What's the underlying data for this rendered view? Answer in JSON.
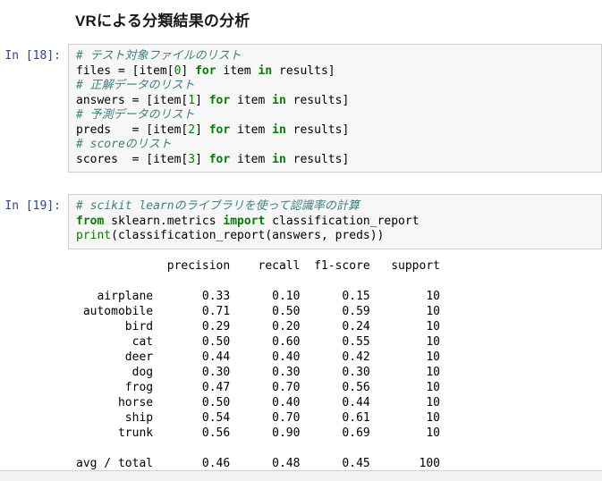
{
  "title": "VRによる分類結果の分析",
  "colors": {
    "prompt": "#303F9F",
    "cell_background": "#f7f7f7",
    "cell_border": "#cfcfcf",
    "comment": "#408080",
    "keyword": "#008000",
    "number": "#008000"
  },
  "cells": [
    {
      "prompt": "In [18]:",
      "lines": [
        [
          {
            "c": "com",
            "t": "# テスト対象ファイルのリスト"
          }
        ],
        [
          {
            "c": "",
            "t": "files = [item["
          },
          {
            "c": "num",
            "t": "0"
          },
          {
            "c": "",
            "t": "] "
          },
          {
            "c": "kw",
            "t": "for"
          },
          {
            "c": "",
            "t": " item "
          },
          {
            "c": "kw",
            "t": "in"
          },
          {
            "c": "",
            "t": " results]"
          }
        ],
        [
          {
            "c": "com",
            "t": "# 正解データのリスト"
          }
        ],
        [
          {
            "c": "",
            "t": "answers = [item["
          },
          {
            "c": "num",
            "t": "1"
          },
          {
            "c": "",
            "t": "] "
          },
          {
            "c": "kw",
            "t": "for"
          },
          {
            "c": "",
            "t": " item "
          },
          {
            "c": "kw",
            "t": "in"
          },
          {
            "c": "",
            "t": " results]"
          }
        ],
        [
          {
            "c": "com",
            "t": "# 予測データのリスト"
          }
        ],
        [
          {
            "c": "",
            "t": "preds   = [item["
          },
          {
            "c": "num",
            "t": "2"
          },
          {
            "c": "",
            "t": "] "
          },
          {
            "c": "kw",
            "t": "for"
          },
          {
            "c": "",
            "t": " item "
          },
          {
            "c": "kw",
            "t": "in"
          },
          {
            "c": "",
            "t": " results]"
          }
        ],
        [
          {
            "c": "com",
            "t": "# scoreのリスト"
          }
        ],
        [
          {
            "c": "",
            "t": "scores  = [item["
          },
          {
            "c": "num",
            "t": "3"
          },
          {
            "c": "",
            "t": "] "
          },
          {
            "c": "kw",
            "t": "for"
          },
          {
            "c": "",
            "t": " item "
          },
          {
            "c": "kw",
            "t": "in"
          },
          {
            "c": "",
            "t": " results]"
          }
        ]
      ]
    },
    {
      "prompt": "In [19]:",
      "lines": [
        [
          {
            "c": "com",
            "t": "# scikit learnのライブラリを使って認識率の計算"
          }
        ],
        [
          {
            "c": "kw",
            "t": "from"
          },
          {
            "c": "",
            "t": " sklearn.metrics "
          },
          {
            "c": "kw",
            "t": "import"
          },
          {
            "c": "",
            "t": " classification_report"
          }
        ],
        [
          {
            "c": "blt",
            "t": "print"
          },
          {
            "c": "",
            "t": "(classification_report(answers, preds))"
          }
        ]
      ]
    }
  ],
  "output": {
    "lines": [
      "             precision    recall  f1-score   support",
      "",
      "   airplane       0.33      0.10      0.15        10",
      " automobile       0.71      0.50      0.59        10",
      "       bird       0.29      0.20      0.24        10",
      "        cat       0.50      0.60      0.55        10",
      "       deer       0.44      0.40      0.42        10",
      "        dog       0.30      0.30      0.30        10",
      "       frog       0.47      0.70      0.56        10",
      "      horse       0.50      0.40      0.44        10",
      "       ship       0.54      0.70      0.61        10",
      "      trunk       0.56      0.90      0.69        10",
      "",
      "avg / total       0.46      0.48      0.45       100"
    ],
    "table": {
      "headers": [
        "precision",
        "recall",
        "f1-score",
        "support"
      ],
      "rows": [
        {
          "label": "airplane",
          "precision": 0.33,
          "recall": 0.1,
          "f1_score": 0.15,
          "support": 10
        },
        {
          "label": "automobile",
          "precision": 0.71,
          "recall": 0.5,
          "f1_score": 0.59,
          "support": 10
        },
        {
          "label": "bird",
          "precision": 0.29,
          "recall": 0.2,
          "f1_score": 0.24,
          "support": 10
        },
        {
          "label": "cat",
          "precision": 0.5,
          "recall": 0.6,
          "f1_score": 0.55,
          "support": 10
        },
        {
          "label": "deer",
          "precision": 0.44,
          "recall": 0.4,
          "f1_score": 0.42,
          "support": 10
        },
        {
          "label": "dog",
          "precision": 0.3,
          "recall": 0.3,
          "f1_score": 0.3,
          "support": 10
        },
        {
          "label": "frog",
          "precision": 0.47,
          "recall": 0.7,
          "f1_score": 0.56,
          "support": 10
        },
        {
          "label": "horse",
          "precision": 0.5,
          "recall": 0.4,
          "f1_score": 0.44,
          "support": 10
        },
        {
          "label": "ship",
          "precision": 0.54,
          "recall": 0.7,
          "f1_score": 0.61,
          "support": 10
        },
        {
          "label": "trunk",
          "precision": 0.56,
          "recall": 0.9,
          "f1_score": 0.69,
          "support": 10
        }
      ],
      "avg_total": {
        "label": "avg / total",
        "precision": 0.46,
        "recall": 0.48,
        "f1_score": 0.45,
        "support": 100
      }
    }
  }
}
